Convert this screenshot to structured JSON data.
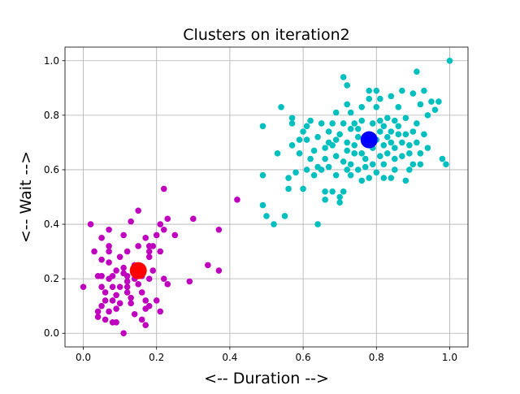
{
  "chart_data": {
    "type": "scatter",
    "title": "Clusters on iteration2",
    "xlabel": "<-- Duration -->",
    "ylabel": "<-- Wait -->",
    "xlim": [
      -0.05,
      1.05
    ],
    "ylim": [
      -0.05,
      1.05
    ],
    "xticks": [
      "0.0",
      "0.2",
      "0.4",
      "0.6",
      "0.8",
      "1.0"
    ],
    "yticks": [
      "0.0",
      "0.2",
      "0.4",
      "0.6",
      "0.8",
      "1.0"
    ],
    "grid": true,
    "series": [
      {
        "color": "#bf00bf",
        "points": [
          [
            0.0,
            0.17
          ],
          [
            0.02,
            0.4
          ],
          [
            0.03,
            0.3
          ],
          [
            0.04,
            0.21
          ],
          [
            0.04,
            0.08
          ],
          [
            0.04,
            0.06
          ],
          [
            0.05,
            0.35
          ],
          [
            0.05,
            0.27
          ],
          [
            0.05,
            0.21
          ],
          [
            0.05,
            0.17
          ],
          [
            0.05,
            0.1
          ],
          [
            0.06,
            0.15
          ],
          [
            0.06,
            0.12
          ],
          [
            0.06,
            0.05
          ],
          [
            0.07,
            0.38
          ],
          [
            0.07,
            0.32
          ],
          [
            0.07,
            0.3
          ],
          [
            0.07,
            0.26
          ],
          [
            0.07,
            0.2
          ],
          [
            0.07,
            0.08
          ],
          [
            0.08,
            0.04
          ],
          [
            0.08,
            0.12
          ],
          [
            0.08,
            0.17
          ],
          [
            0.08,
            0.21
          ],
          [
            0.09,
            0.23
          ],
          [
            0.09,
            0.09
          ],
          [
            0.09,
            0.04
          ],
          [
            0.09,
            0.14
          ],
          [
            0.1,
            0.17
          ],
          [
            0.1,
            0.28
          ],
          [
            0.1,
            0.11
          ],
          [
            0.11,
            0.24
          ],
          [
            0.11,
            0.22
          ],
          [
            0.11,
            0.36
          ],
          [
            0.11,
            0.0
          ],
          [
            0.12,
            0.15
          ],
          [
            0.12,
            0.17
          ],
          [
            0.12,
            0.21
          ],
          [
            0.12,
            0.19
          ],
          [
            0.12,
            0.3
          ],
          [
            0.13,
            0.11
          ],
          [
            0.13,
            0.13
          ],
          [
            0.13,
            0.41
          ],
          [
            0.14,
            0.07
          ],
          [
            0.14,
            0.2
          ],
          [
            0.14,
            0.25
          ],
          [
            0.15,
            0.18
          ],
          [
            0.15,
            0.32
          ],
          [
            0.15,
            0.45
          ],
          [
            0.16,
            0.15
          ],
          [
            0.16,
            0.05
          ],
          [
            0.16,
            0.24
          ],
          [
            0.16,
            0.21
          ],
          [
            0.17,
            0.12
          ],
          [
            0.17,
            0.35
          ],
          [
            0.17,
            0.09
          ],
          [
            0.17,
            0.03
          ],
          [
            0.18,
            0.32
          ],
          [
            0.18,
            0.3
          ],
          [
            0.18,
            0.28
          ],
          [
            0.18,
            0.2
          ],
          [
            0.18,
            0.1
          ],
          [
            0.19,
            0.32
          ],
          [
            0.19,
            0.23
          ],
          [
            0.2,
            0.36
          ],
          [
            0.2,
            0.12
          ],
          [
            0.21,
            0.3
          ],
          [
            0.21,
            0.4
          ],
          [
            0.21,
            0.08
          ],
          [
            0.22,
            0.38
          ],
          [
            0.22,
            0.53
          ],
          [
            0.22,
            0.2
          ],
          [
            0.23,
            0.18
          ],
          [
            0.23,
            0.42
          ],
          [
            0.25,
            0.36
          ],
          [
            0.29,
            0.19
          ],
          [
            0.3,
            0.42
          ],
          [
            0.34,
            0.25
          ],
          [
            0.37,
            0.23
          ],
          [
            0.37,
            0.38
          ],
          [
            0.42,
            0.49
          ]
        ]
      },
      {
        "color": "#00bfbf",
        "points": [
          [
            0.49,
            0.76
          ],
          [
            0.49,
            0.58
          ],
          [
            0.49,
            0.47
          ],
          [
            0.5,
            0.43
          ],
          [
            0.52,
            0.4
          ],
          [
            0.53,
            0.66
          ],
          [
            0.54,
            0.83
          ],
          [
            0.55,
            0.43
          ],
          [
            0.56,
            0.53
          ],
          [
            0.56,
            0.57
          ],
          [
            0.57,
            0.77
          ],
          [
            0.57,
            0.79
          ],
          [
            0.57,
            0.69
          ],
          [
            0.58,
            0.59
          ],
          [
            0.59,
            0.71
          ],
          [
            0.59,
            0.66
          ],
          [
            0.6,
            0.53
          ],
          [
            0.6,
            0.74
          ],
          [
            0.61,
            0.6
          ],
          [
            0.61,
            0.76
          ],
          [
            0.61,
            0.71
          ],
          [
            0.62,
            0.64
          ],
          [
            0.62,
            0.78
          ],
          [
            0.63,
            0.67
          ],
          [
            0.63,
            0.58
          ],
          [
            0.64,
            0.4
          ],
          [
            0.64,
            0.61
          ],
          [
            0.64,
            0.72
          ],
          [
            0.65,
            0.6
          ],
          [
            0.65,
            0.77
          ],
          [
            0.66,
            0.52
          ],
          [
            0.66,
            0.49
          ],
          [
            0.66,
            0.64
          ],
          [
            0.66,
            0.68
          ],
          [
            0.67,
            0.74
          ],
          [
            0.67,
            0.7
          ],
          [
            0.67,
            0.61
          ],
          [
            0.68,
            0.77
          ],
          [
            0.68,
            0.69
          ],
          [
            0.68,
            0.52
          ],
          [
            0.69,
            0.81
          ],
          [
            0.69,
            0.65
          ],
          [
            0.69,
            0.58
          ],
          [
            0.69,
            0.71
          ],
          [
            0.7,
            0.73
          ],
          [
            0.7,
            0.48
          ],
          [
            0.7,
            0.5
          ],
          [
            0.71,
            0.94
          ],
          [
            0.71,
            0.52
          ],
          [
            0.71,
            0.63
          ],
          [
            0.71,
            0.77
          ],
          [
            0.72,
            0.6
          ],
          [
            0.72,
            0.7
          ],
          [
            0.72,
            0.91
          ],
          [
            0.72,
            0.84
          ],
          [
            0.72,
            0.67
          ],
          [
            0.73,
            0.81
          ],
          [
            0.73,
            0.58
          ],
          [
            0.73,
            0.62
          ],
          [
            0.73,
            0.75
          ],
          [
            0.74,
            0.77
          ],
          [
            0.74,
            0.69
          ],
          [
            0.74,
            0.66
          ],
          [
            0.75,
            0.72
          ],
          [
            0.75,
            0.6
          ],
          [
            0.75,
            0.75
          ],
          [
            0.76,
            0.66
          ],
          [
            0.76,
            0.56
          ],
          [
            0.76,
            0.78
          ],
          [
            0.76,
            0.83
          ],
          [
            0.77,
            0.71
          ],
          [
            0.77,
            0.64
          ],
          [
            0.77,
            0.61
          ],
          [
            0.78,
            0.57
          ],
          [
            0.78,
            0.89
          ],
          [
            0.78,
            0.86
          ],
          [
            0.78,
            0.73
          ],
          [
            0.79,
            0.62
          ],
          [
            0.79,
            0.77
          ],
          [
            0.79,
            0.68
          ],
          [
            0.8,
            0.83
          ],
          [
            0.8,
            0.59
          ],
          [
            0.8,
            0.89
          ],
          [
            0.8,
            0.71
          ],
          [
            0.81,
            0.74
          ],
          [
            0.81,
            0.65
          ],
          [
            0.81,
            0.86
          ],
          [
            0.81,
            0.78
          ],
          [
            0.82,
            0.57
          ],
          [
            0.82,
            0.69
          ],
          [
            0.82,
            0.76
          ],
          [
            0.82,
            0.62
          ],
          [
            0.83,
            0.72
          ],
          [
            0.83,
            0.79
          ],
          [
            0.83,
            0.66
          ],
          [
            0.84,
            0.57
          ],
          [
            0.84,
            0.74
          ],
          [
            0.84,
            0.7
          ],
          [
            0.84,
            0.87
          ],
          [
            0.85,
            0.6
          ],
          [
            0.85,
            0.64
          ],
          [
            0.85,
            0.78
          ],
          [
            0.85,
            0.68
          ],
          [
            0.86,
            0.73
          ],
          [
            0.86,
            0.83
          ],
          [
            0.86,
            0.76
          ],
          [
            0.87,
            0.65
          ],
          [
            0.87,
            0.7
          ],
          [
            0.87,
            0.89
          ],
          [
            0.88,
            0.79
          ],
          [
            0.88,
            0.73
          ],
          [
            0.88,
            0.56
          ],
          [
            0.89,
            0.69
          ],
          [
            0.89,
            0.66
          ],
          [
            0.89,
            0.6
          ],
          [
            0.9,
            0.88
          ],
          [
            0.9,
            0.74
          ],
          [
            0.9,
            0.62
          ],
          [
            0.91,
            0.7
          ],
          [
            0.91,
            0.96
          ],
          [
            0.91,
            0.77
          ],
          [
            0.92,
            0.66
          ],
          [
            0.92,
            0.62
          ],
          [
            0.92,
            0.84
          ],
          [
            0.93,
            0.73
          ],
          [
            0.93,
            0.89
          ],
          [
            0.94,
            0.8
          ],
          [
            0.94,
            0.68
          ],
          [
            0.95,
            0.85
          ],
          [
            0.96,
            0.82
          ],
          [
            0.97,
            0.85
          ],
          [
            0.98,
            0.64
          ],
          [
            0.99,
            0.62
          ],
          [
            1.0,
            1.0
          ]
        ]
      }
    ],
    "centroids": [
      {
        "x": 0.15,
        "y": 0.23,
        "color": "#ff0000"
      },
      {
        "x": 0.78,
        "y": 0.71,
        "color": "#0000ff"
      }
    ]
  }
}
